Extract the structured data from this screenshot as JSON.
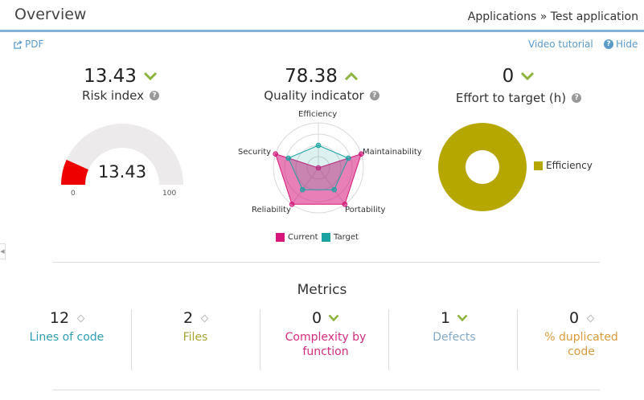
{
  "header": {
    "title": "Overview",
    "breadcrumb": "Applications » Test application"
  },
  "toolbar": {
    "pdf_label": "PDF",
    "video_label": "Video tutorial",
    "hide_label": "Hide"
  },
  "risk": {
    "value": "13.43",
    "label": "Risk index",
    "gauge_value": "13.43",
    "gauge_min": "0",
    "gauge_max": "100",
    "gauge_fraction": 0.1343,
    "fill_color": "#ee0000"
  },
  "quality": {
    "value": "78.38",
    "label": "Quality indicator",
    "chart_data": {
      "type": "radar",
      "axes": [
        "Efficiency",
        "Maintainability",
        "Portability",
        "Reliability",
        "Security"
      ],
      "series": [
        {
          "name": "Current",
          "color": "#d6167a",
          "values": [
            0.0,
            1.0,
            1.0,
            1.0,
            1.0
          ]
        },
        {
          "name": "Target",
          "color": "#1ba3a3",
          "values": [
            0.5,
            0.7,
            0.6,
            0.6,
            0.7
          ]
        }
      ],
      "legend_placement": "bottom"
    }
  },
  "effort": {
    "value": "0",
    "label": "Effort to target (h)",
    "chart_data": {
      "type": "pie",
      "categories": [
        "Efficiency"
      ],
      "values": [
        1
      ],
      "colors": [
        "#b5a600"
      ],
      "legend_placement": "right"
    }
  },
  "metrics": {
    "title": "Metrics",
    "items": [
      {
        "value": "12",
        "label": "Lines of code",
        "color": "#2e9fb2",
        "trend": "neutral"
      },
      {
        "value": "2",
        "label": "Files",
        "color": "#a8a332",
        "trend": "neutral"
      },
      {
        "value": "0",
        "label": "Complexity by function",
        "color": "#d32c7c",
        "trend": "down"
      },
      {
        "value": "1",
        "label": "Defects",
        "color": "#83a9c7",
        "trend": "down"
      },
      {
        "value": "0",
        "label": "% duplicated code",
        "color": "#d89b3b",
        "trend": "neutral"
      }
    ]
  },
  "colors": {
    "accent": "#7fb2d6",
    "link": "#5b9bc9",
    "trend_good": "#8db33f"
  }
}
